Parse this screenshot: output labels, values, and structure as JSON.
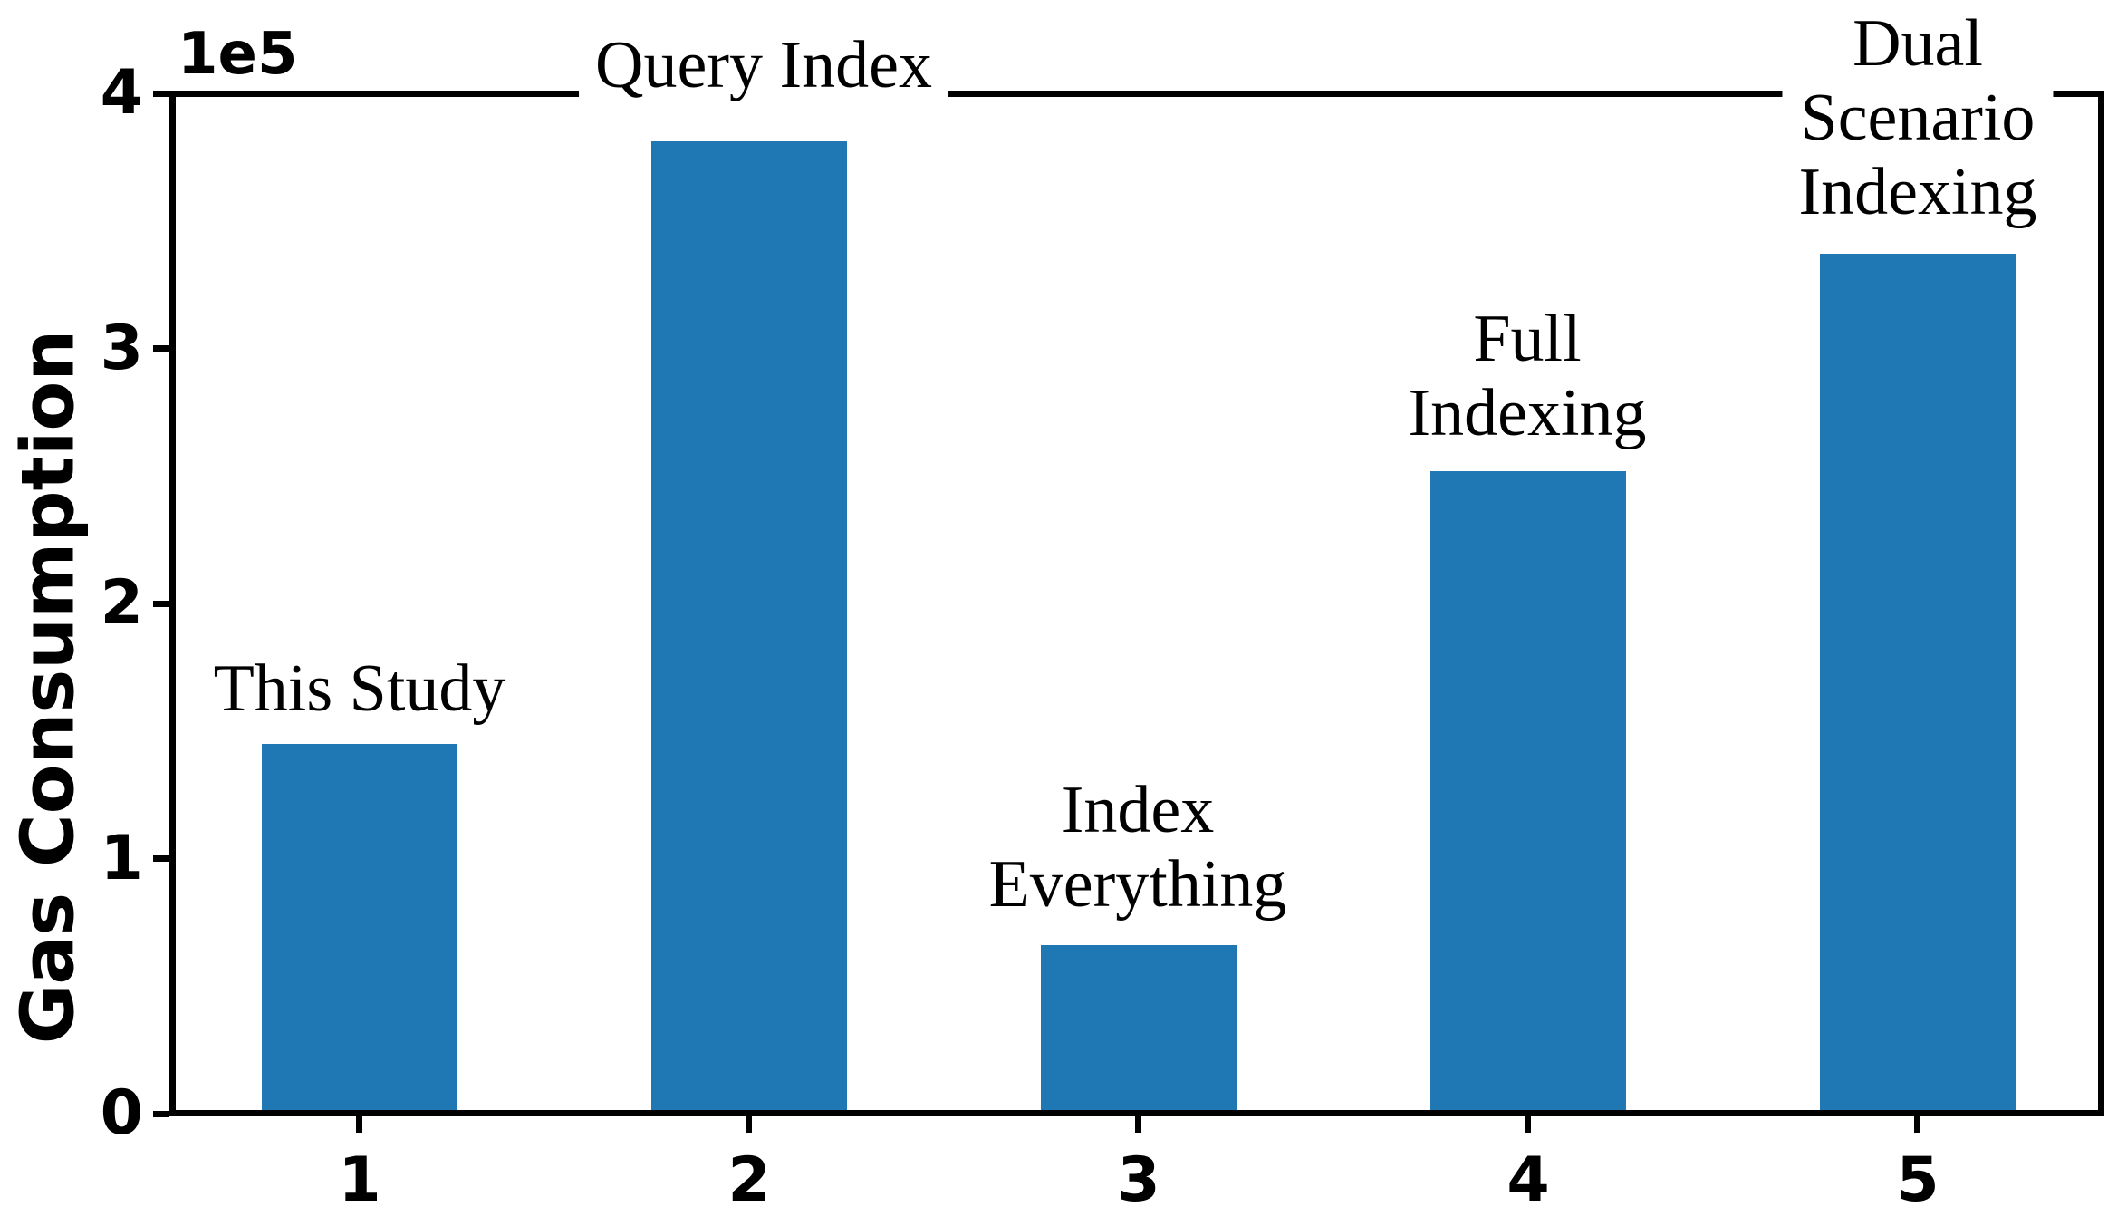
{
  "figure": {
    "background": "#ffffff",
    "text_color": "#000000"
  },
  "chart_data": {
    "type": "bar",
    "title": "",
    "xlabel": "",
    "ylabel": "Gas Consumption",
    "offset_text": "1e5",
    "categories": [
      "1",
      "2",
      "3",
      "4",
      "5"
    ],
    "values": [
      145000,
      381000,
      66000,
      252000,
      337000
    ],
    "bar_annotations": [
      "This Study",
      "Query Index",
      "Index\nEverything",
      "Full\nIndexing",
      "Dual\nScenario\nIndexing"
    ],
    "yticks": [
      "0",
      "1",
      "2",
      "3",
      "4"
    ],
    "ytick_values": [
      0,
      100000,
      200000,
      300000,
      400000
    ],
    "ylim": [
      0,
      400000
    ],
    "bar_color": "#1f77b4",
    "grid": false,
    "legend": false,
    "annotation_font": "serif",
    "axis_font": "sans-serif bold"
  }
}
